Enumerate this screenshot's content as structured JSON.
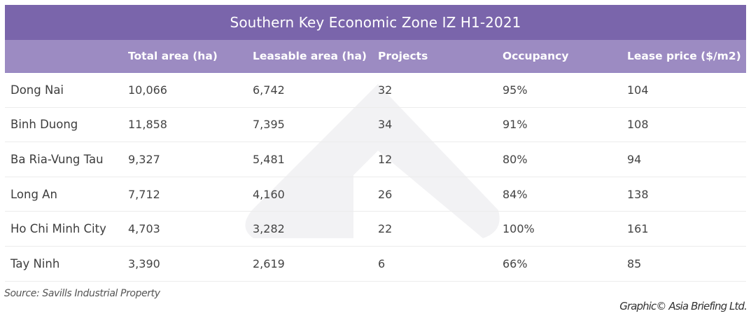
{
  "title": "Southern Key Economic Zone IZ H1-2021",
  "columns": [
    "",
    "Total area (ha)",
    "Leasable area (ha)",
    "Projects",
    "Occupancy",
    "Lease price ($/m2)"
  ],
  "rows": [
    [
      "Dong Nai",
      "10,066",
      "6,742",
      "32",
      "95%",
      "104"
    ],
    [
      "Binh Duong",
      "11,858",
      "7,395",
      "34",
      "91%",
      "108"
    ],
    [
      "Ba Ria-Vung Tau",
      "9,327",
      "5,481",
      "12",
      "80%",
      "94"
    ],
    [
      "Long An",
      "7,712",
      "4,160",
      "26",
      "84%",
      "138"
    ],
    [
      "Ho Chi Minh City",
      "4,703",
      "3,282",
      "22",
      "100%",
      "161"
    ],
    [
      "Tay Ninh",
      "3,390",
      "2,619",
      "6",
      "66%",
      "85"
    ]
  ],
  "source": "Source: Savills Industrial Property",
  "credit": "Graphic© Asia Briefing Ltd.",
  "colors": {
    "title_bg": "#7a65ab",
    "header_bg": "#9c8bc2",
    "watermark": "#f3f3f5"
  },
  "watermark_icon": "asia-briefing-logo-watermark"
}
